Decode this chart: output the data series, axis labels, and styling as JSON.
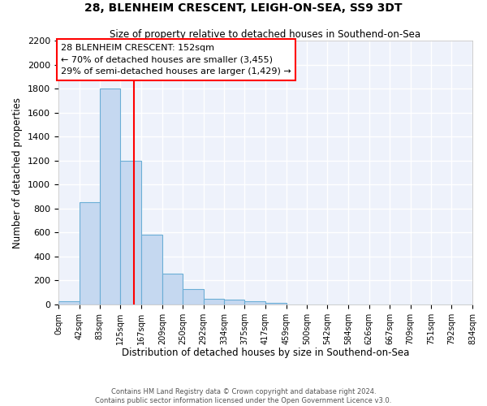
{
  "title1": "28, BLENHEIM CRESCENT, LEIGH-ON-SEA, SS9 3DT",
  "title2": "Size of property relative to detached houses in Southend-on-Sea",
  "xlabel": "Distribution of detached houses by size in Southend-on-Sea",
  "ylabel": "Number of detached properties",
  "bin_edges": [
    0,
    42,
    83,
    125,
    167,
    209,
    250,
    292,
    334,
    375,
    417,
    459,
    500,
    542,
    584,
    626,
    667,
    709,
    751,
    792,
    834
  ],
  "bar_heights": [
    25,
    850,
    1800,
    1200,
    580,
    260,
    130,
    45,
    40,
    25,
    15,
    0,
    0,
    0,
    0,
    0,
    0,
    0,
    0,
    0
  ],
  "bar_color": "#c5d8f0",
  "bar_edge_color": "#6baed6",
  "vline_x": 152,
  "vline_color": "red",
  "ylim": [
    0,
    2200
  ],
  "yticks": [
    0,
    200,
    400,
    600,
    800,
    1000,
    1200,
    1400,
    1600,
    1800,
    2000,
    2200
  ],
  "annotation_line1": "28 BLENHEIM CRESCENT: 152sqm",
  "annotation_line2": "← 70% of detached houses are smaller (3,455)",
  "annotation_line3": "29% of semi-detached houses are larger (1,429) →",
  "annotation_box_color": "white",
  "annotation_box_edge": "red",
  "footer1": "Contains HM Land Registry data © Crown copyright and database right 2024.",
  "footer2": "Contains public sector information licensed under the Open Government Licence v3.0.",
  "bg_color": "#eef2fb",
  "grid_color": "white",
  "tick_labels": [
    "0sqm",
    "42sqm",
    "83sqm",
    "125sqm",
    "167sqm",
    "209sqm",
    "250sqm",
    "292sqm",
    "334sqm",
    "375sqm",
    "417sqm",
    "459sqm",
    "500sqm",
    "542sqm",
    "584sqm",
    "626sqm",
    "667sqm",
    "709sqm",
    "751sqm",
    "792sqm",
    "834sqm"
  ]
}
